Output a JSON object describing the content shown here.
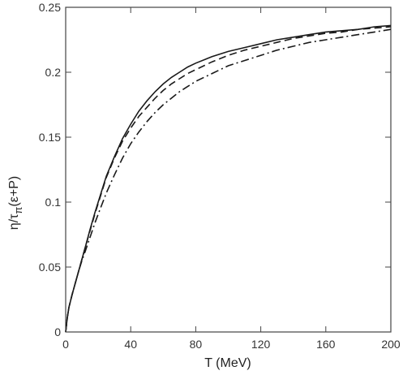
{
  "chart_data": {
    "type": "line",
    "xlabel": "T (MeV)",
    "ylabel": "η/τπ(ε+P)",
    "ylabel_parts": {
      "eta": "η/τ",
      "pi": "π",
      "rest": "(ε+P)"
    },
    "xlim": [
      0,
      200
    ],
    "ylim": [
      0,
      0.25
    ],
    "x_ticks": [
      "0",
      "40",
      "80",
      "120",
      "160",
      "200"
    ],
    "y_ticks": [
      "0",
      "0.05",
      "0.1",
      "0.15",
      "0.2",
      "0.25"
    ],
    "grid": false,
    "legend": "none",
    "series": [
      {
        "style": "solid",
        "x": [
          0,
          1,
          2,
          4,
          6,
          8,
          10,
          12,
          15,
          18,
          21,
          25,
          30,
          35,
          40,
          45,
          50,
          55,
          60,
          65,
          70,
          75,
          80,
          90,
          100,
          110,
          120,
          130,
          140,
          150,
          160,
          170,
          180,
          190,
          200
        ],
        "y": [
          0,
          0.011,
          0.019,
          0.029,
          0.038,
          0.047,
          0.056,
          0.065,
          0.079,
          0.092,
          0.104,
          0.12,
          0.135,
          0.149,
          0.16,
          0.17,
          0.178,
          0.185,
          0.191,
          0.196,
          0.2,
          0.204,
          0.207,
          0.212,
          0.216,
          0.219,
          0.222,
          0.225,
          0.227,
          0.229,
          0.231,
          0.232,
          0.233,
          0.235,
          0.236
        ]
      },
      {
        "style": "dashed",
        "x": [
          0,
          1,
          2,
          4,
          6,
          8,
          10,
          12,
          15,
          18,
          21,
          25,
          30,
          35,
          40,
          45,
          50,
          55,
          60,
          65,
          70,
          75,
          80,
          90,
          100,
          110,
          120,
          130,
          140,
          150,
          160,
          170,
          180,
          190,
          200
        ],
        "y": [
          0,
          0.011,
          0.019,
          0.029,
          0.038,
          0.047,
          0.056,
          0.065,
          0.078,
          0.091,
          0.103,
          0.119,
          0.134,
          0.147,
          0.157,
          0.166,
          0.173,
          0.18,
          0.186,
          0.191,
          0.195,
          0.199,
          0.202,
          0.208,
          0.213,
          0.217,
          0.22,
          0.223,
          0.226,
          0.228,
          0.23,
          0.231,
          0.233,
          0.234,
          0.235
        ]
      },
      {
        "style": "dashdot",
        "x": [
          0,
          1,
          2,
          4,
          6,
          8,
          10,
          12,
          15,
          18,
          21,
          25,
          30,
          35,
          40,
          45,
          50,
          55,
          60,
          65,
          70,
          75,
          80,
          90,
          100,
          110,
          120,
          130,
          140,
          150,
          160,
          170,
          180,
          190,
          200
        ],
        "y": [
          0,
          0.011,
          0.019,
          0.029,
          0.038,
          0.047,
          0.055,
          0.062,
          0.073,
          0.084,
          0.094,
          0.107,
          0.121,
          0.134,
          0.145,
          0.154,
          0.162,
          0.169,
          0.175,
          0.18,
          0.185,
          0.189,
          0.193,
          0.199,
          0.205,
          0.209,
          0.213,
          0.217,
          0.22,
          0.223,
          0.225,
          0.227,
          0.229,
          0.231,
          0.233
        ]
      }
    ]
  }
}
